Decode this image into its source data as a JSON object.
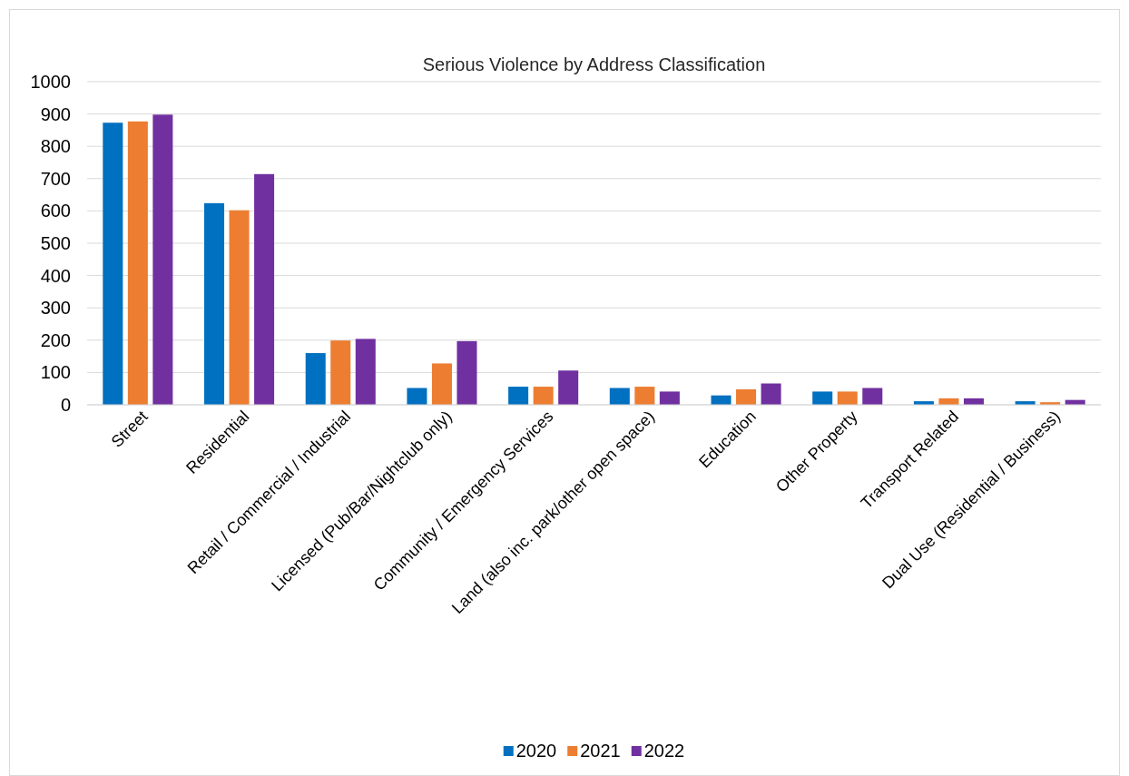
{
  "chart_data": {
    "type": "bar",
    "title": "Serious Violence by Address Classification",
    "categories": [
      "Street",
      "Residential",
      "Retail / Commercial / Industrial",
      "Licensed (Pub/Bar/Nightclub only)",
      "Community / Emergency Services",
      "Land (also inc. park/other open space)",
      "Education",
      "Other Property",
      "Transport Related",
      "Dual Use (Residential / Business)"
    ],
    "series": [
      {
        "name": "2020",
        "color": "#0070c0",
        "values": [
          873,
          624,
          160,
          52,
          56,
          52,
          29,
          41,
          11,
          11
        ]
      },
      {
        "name": "2021",
        "color": "#ed7d31",
        "values": [
          877,
          602,
          199,
          128,
          56,
          56,
          48,
          41,
          20,
          8
        ]
      },
      {
        "name": "2022",
        "color": "#7030a0",
        "values": [
          898,
          714,
          204,
          197,
          106,
          41,
          66,
          52,
          20,
          15
        ]
      }
    ],
    "ylim": [
      0,
      1000
    ],
    "yticks": [
      0,
      100,
      200,
      300,
      400,
      500,
      600,
      700,
      800,
      900,
      1000
    ],
    "grid": "y",
    "legend": "bottom"
  }
}
